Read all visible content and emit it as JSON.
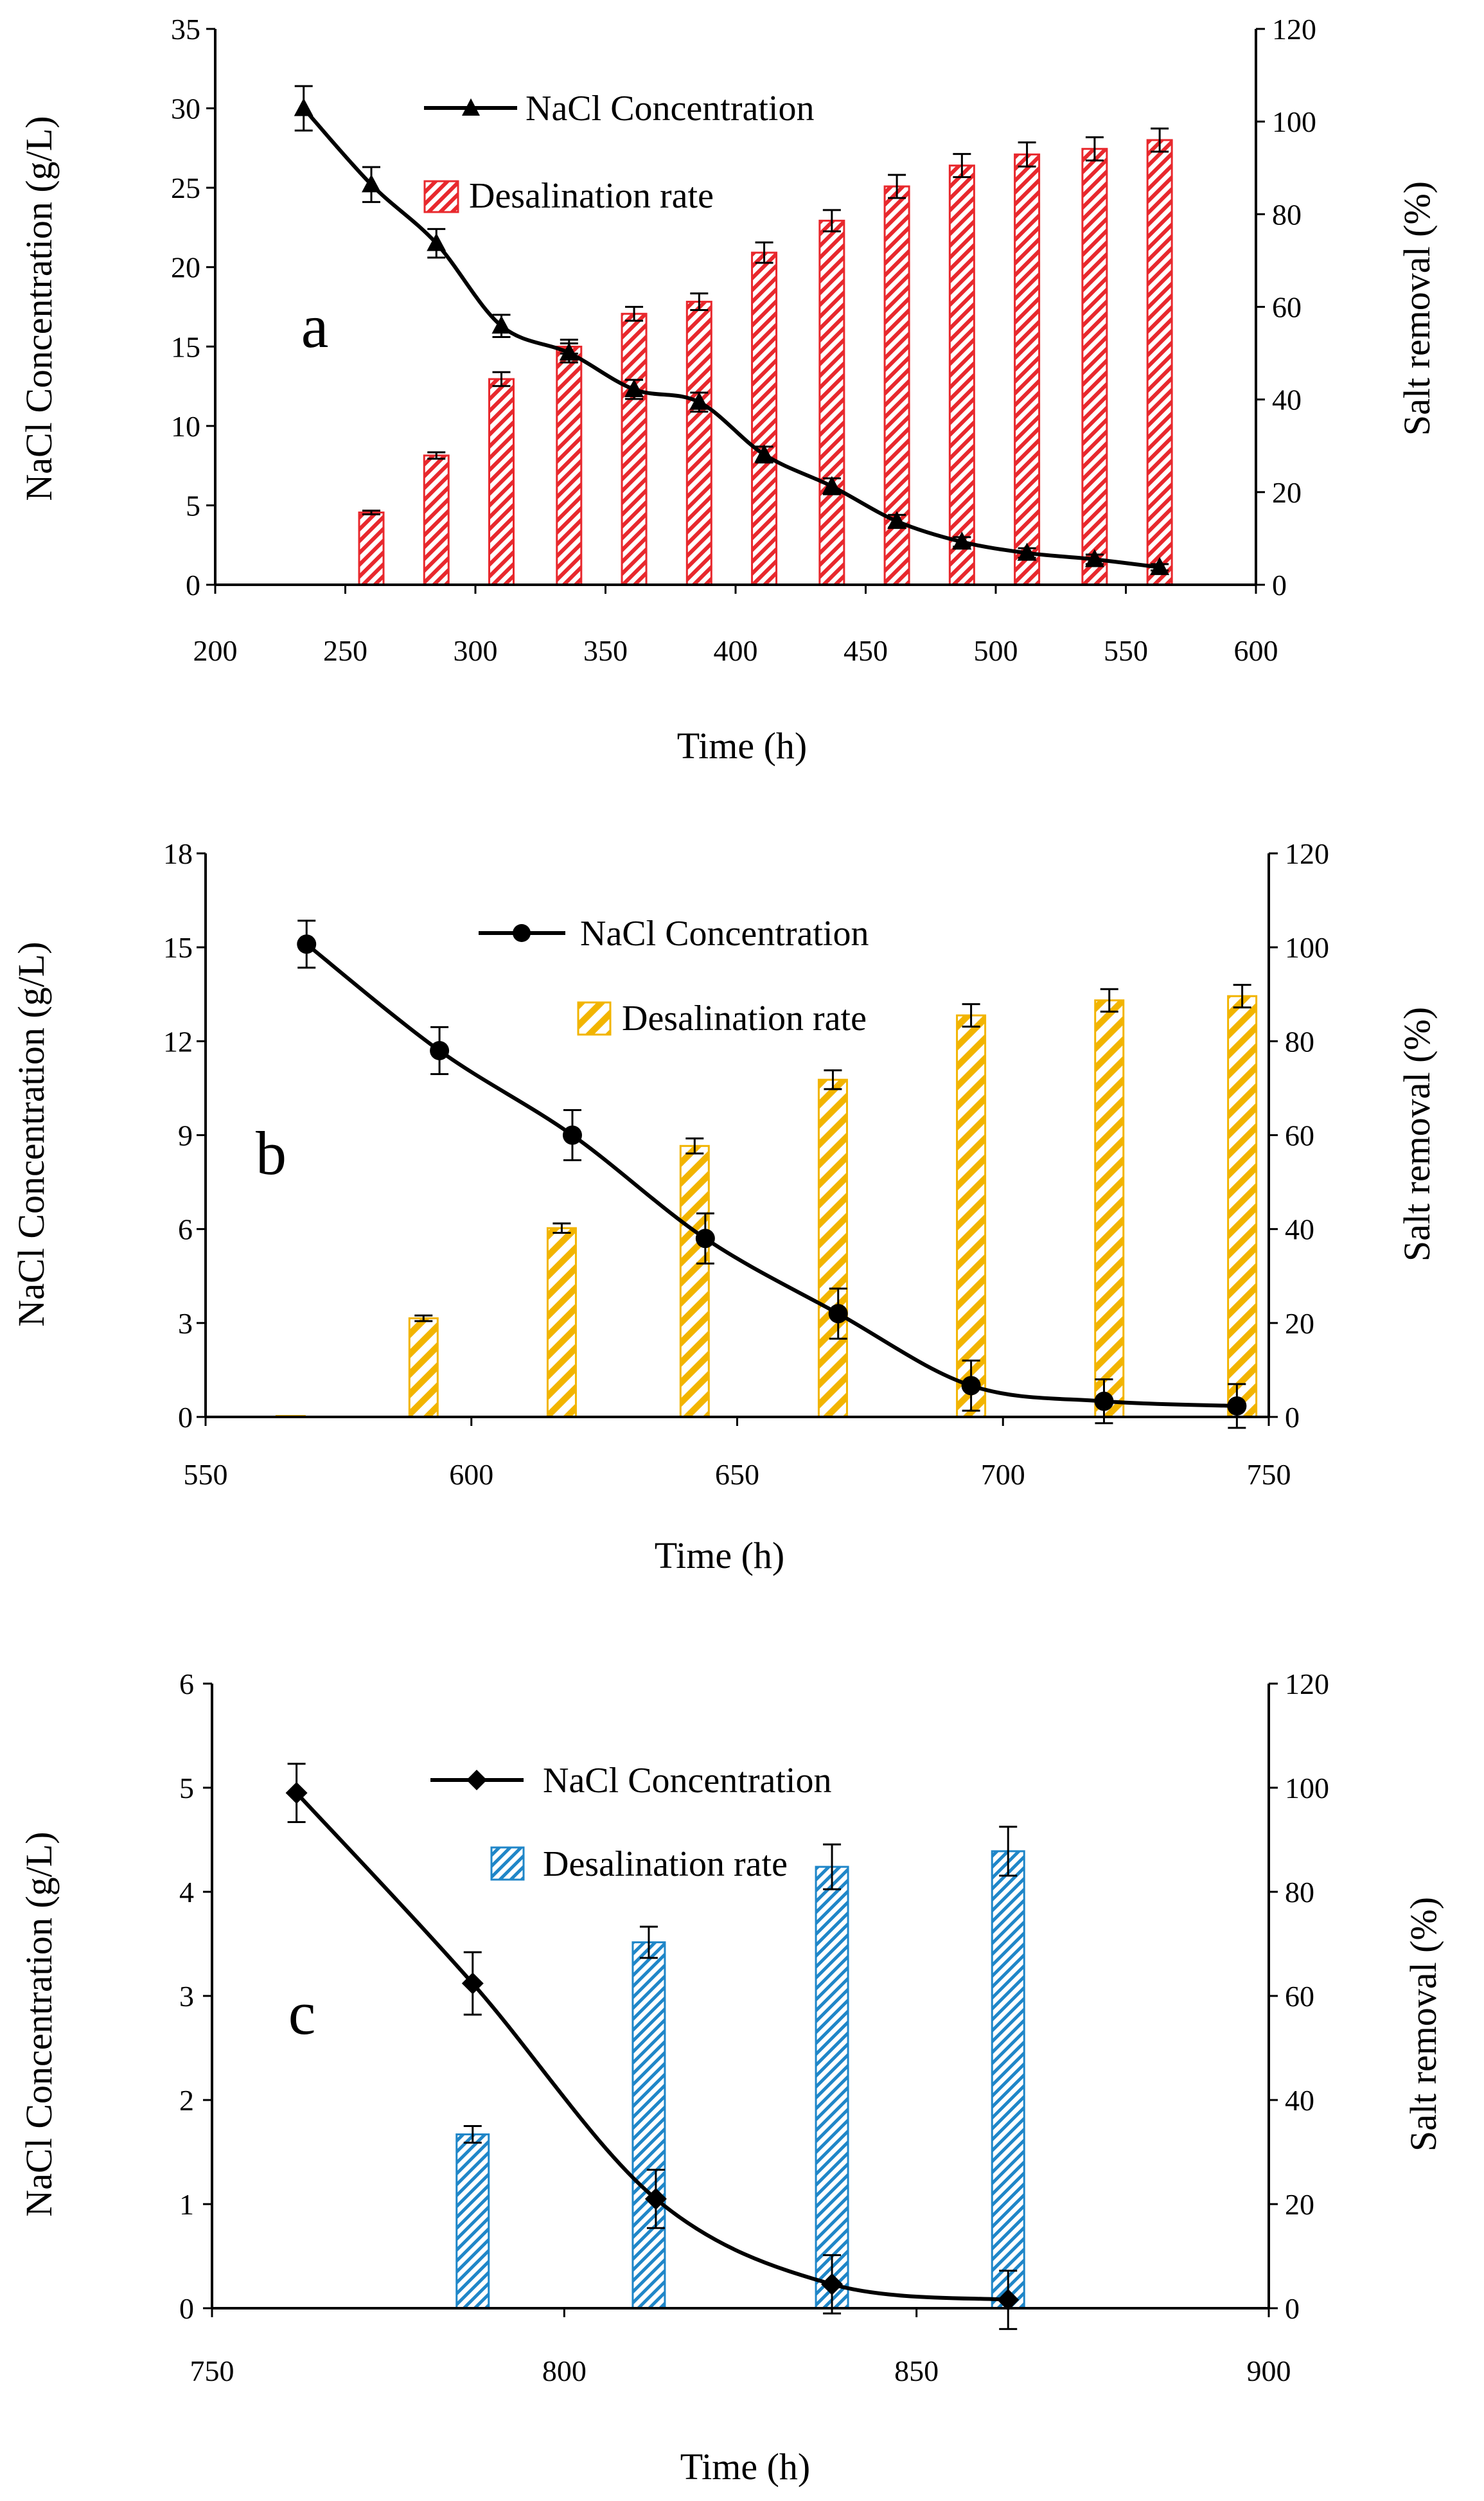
{
  "chart_data": [
    {
      "type": "bar+line",
      "panel_label": "a",
      "xlabel": "Time (h)",
      "ylabel_left": "NaCl Concentration (g/L)",
      "ylabel_right": "Salt removal (%)",
      "xlim": [
        200,
        600
      ],
      "xticks": [
        200,
        250,
        300,
        350,
        400,
        450,
        500,
        550,
        600
      ],
      "ylim_left": [
        0,
        35
      ],
      "yticks_left": [
        0,
        5,
        10,
        15,
        20,
        25,
        30,
        35
      ],
      "ylim_right": [
        0,
        120
      ],
      "yticks_right": [
        0,
        20,
        40,
        60,
        80,
        100,
        120
      ],
      "legend_position": "top-center",
      "series": [
        {
          "name": "NaCl Concentration",
          "axis": "left",
          "kind": "line",
          "marker": "triangle",
          "color": "#000000",
          "x": [
            234,
            260,
            285,
            310,
            336,
            361,
            386,
            411,
            437,
            462,
            487,
            512,
            538,
            563
          ],
          "values": [
            30.0,
            25.2,
            21.5,
            16.3,
            14.6,
            12.3,
            11.5,
            8.2,
            6.2,
            4.0,
            2.7,
            2.0,
            1.6,
            1.1
          ],
          "errors": [
            1.4,
            1.1,
            0.9,
            0.7,
            0.6,
            0.6,
            0.6,
            0.5,
            0.5,
            0.4,
            0.3,
            0.3,
            0.3,
            0.2
          ]
        },
        {
          "name": "Desalination rate",
          "axis": "right",
          "kind": "bar",
          "pattern": "hatch",
          "color": "#e8282d",
          "x": [
            260,
            285,
            310,
            336,
            361,
            386,
            411,
            437,
            462,
            487,
            512,
            538,
            563
          ],
          "values": [
            15.6,
            27.9,
            44.4,
            51.4,
            58.5,
            61.1,
            71.7,
            78.6,
            86.0,
            90.5,
            92.9,
            94.1,
            96.0
          ],
          "errors": [
            0.4,
            0.7,
            1.5,
            1.5,
            1.5,
            1.8,
            2.2,
            2.3,
            2.5,
            2.5,
            2.6,
            2.5,
            2.5
          ]
        }
      ]
    },
    {
      "type": "bar+line",
      "panel_label": "b",
      "xlabel": "Time (h)",
      "ylabel_left": "NaCl Concentration (g/L)",
      "ylabel_right": "Salt removal (%)",
      "xlim": [
        550,
        750
      ],
      "xticks": [
        550,
        600,
        650,
        700,
        750
      ],
      "ylim_left": [
        0,
        18
      ],
      "yticks_left": [
        0,
        3,
        6,
        9,
        12,
        15,
        18
      ],
      "ylim_right": [
        0,
        120
      ],
      "yticks_right": [
        0,
        20,
        40,
        60,
        80,
        100,
        120
      ],
      "legend_position": "top-center",
      "series": [
        {
          "name": "NaCl Concentration",
          "axis": "left",
          "kind": "line",
          "marker": "circle",
          "color": "#000000",
          "x": [
            569,
            594,
            619,
            644,
            669,
            694,
            719,
            744
          ],
          "values": [
            15.1,
            11.7,
            9.0,
            5.7,
            3.3,
            1.0,
            0.5,
            0.35
          ],
          "errors": [
            0.75,
            0.75,
            0.8,
            0.8,
            0.8,
            0.8,
            0.7,
            0.7
          ]
        },
        {
          "name": "Desalination rate",
          "axis": "right",
          "kind": "bar",
          "pattern": "hatch",
          "color": "#f2b400",
          "x": [
            566,
            591,
            617,
            642,
            668,
            694,
            720,
            745
          ],
          "values": [
            0.2,
            21.0,
            40.2,
            57.7,
            71.8,
            85.5,
            88.7,
            89.6
          ],
          "errors": [
            0.0,
            0.6,
            1.0,
            1.6,
            2.0,
            2.4,
            2.4,
            2.4
          ]
        }
      ]
    },
    {
      "type": "bar+line",
      "panel_label": "c",
      "xlabel": "Time (h)",
      "ylabel_left": "NaCl Concentration (g/L)",
      "ylabel_right": "Salt removal (%)",
      "xlim": [
        750,
        900
      ],
      "xticks": [
        750,
        800,
        850,
        900
      ],
      "ylim_left": [
        0,
        6
      ],
      "yticks_left": [
        0,
        1,
        2,
        3,
        4,
        5,
        6
      ],
      "ylim_right": [
        0,
        120
      ],
      "yticks_right": [
        0,
        20,
        40,
        60,
        80,
        100,
        120
      ],
      "legend_position": "top-center",
      "series": [
        {
          "name": "NaCl Concentration",
          "axis": "left",
          "kind": "line",
          "marker": "diamond",
          "color": "#000000",
          "x": [
            762,
            787,
            813,
            838,
            863
          ],
          "values": [
            4.95,
            3.12,
            1.05,
            0.23,
            0.08
          ],
          "errors": [
            0.28,
            0.3,
            0.28,
            0.28,
            0.28
          ]
        },
        {
          "name": "Desalination rate",
          "axis": "right",
          "kind": "bar",
          "pattern": "hatch",
          "color": "#1f86c8",
          "x": [
            787,
            812,
            838,
            863
          ],
          "values": [
            33.4,
            70.3,
            84.8,
            87.8
          ],
          "errors": [
            1.6,
            3.0,
            4.3,
            4.7
          ]
        }
      ]
    }
  ]
}
